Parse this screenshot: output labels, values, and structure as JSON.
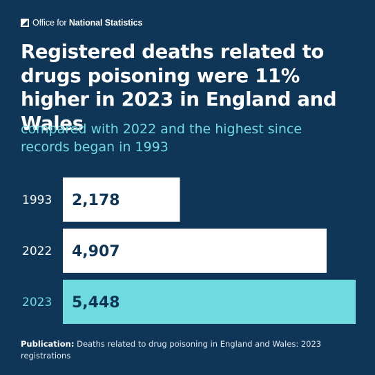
{
  "brand": {
    "name_prefix": "Office for",
    "name_main": "National Statistics"
  },
  "title": "Registered deaths related to drugs poisoning were 11% higher in 2023 in England and Wales",
  "subtitle": "compared with 2022 and the highest since records began in 1993",
  "footer": {
    "label": "Publication:",
    "text": "Deaths related to drug poisoning in England and Wales: 2023 registrations"
  },
  "colors": {
    "background": "#0f3557",
    "bar_default": "#ffffff",
    "bar_highlight": "#6fdbde",
    "value_text": "#0f3557",
    "subtitle": "#6fdbde"
  },
  "chart_data": {
    "type": "bar",
    "orientation": "horizontal",
    "categories": [
      "1993",
      "2022",
      "2023"
    ],
    "values": [
      2178,
      4907,
      5448
    ],
    "value_labels": [
      "2,178",
      "4,907",
      "5,448"
    ],
    "highlight_index": 2,
    "xlim": [
      0,
      5448
    ],
    "grid": false,
    "legend": "none",
    "title": "",
    "xlabel": "",
    "ylabel": ""
  }
}
